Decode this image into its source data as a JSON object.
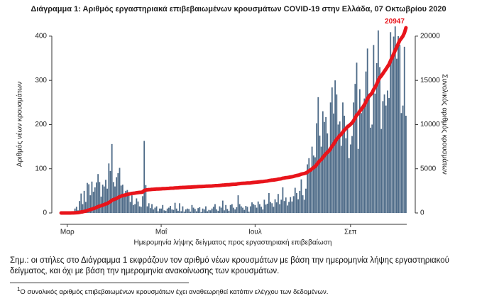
{
  "chart_data": {
    "type": "bar",
    "title": "Διάγραμμα 1: Αριθμός εργαστηριακά επιβεβαιωμένων κρουσμάτων COVID-19 στην Ελλάδα, 07 Οκτωβρίου 2020",
    "y_label": "Αριθμός νέων κρουσμάτων",
    "y2_label": "Συνολικός αριθμός κρουσμάτων",
    "x_label": "Ημερομηνία λήψης δείγματος προς εργαστηριακή επιβεβαίωση",
    "categories": [
      null,
      null,
      null,
      null,
      "Μαρ",
      null,
      null,
      null,
      null,
      null,
      null,
      null,
      null,
      null,
      null,
      null,
      null,
      null,
      null,
      null,
      null,
      null,
      null,
      null,
      null,
      null,
      null,
      null,
      null,
      null,
      null,
      null,
      null,
      null,
      null,
      null,
      null,
      null,
      null,
      null,
      null,
      null,
      null,
      null,
      null,
      null,
      null,
      null,
      null,
      null,
      null,
      null,
      null,
      null,
      null,
      null,
      null,
      null,
      null,
      null,
      null,
      null,
      null,
      null,
      null,
      "Μαΐ",
      null,
      null,
      null,
      null,
      null,
      null,
      null,
      null,
      null,
      null,
      null,
      null,
      null,
      null,
      null,
      null,
      null,
      null,
      null,
      null,
      null,
      null,
      null,
      null,
      null,
      null,
      null,
      null,
      null,
      null,
      null,
      null,
      null,
      null,
      null,
      null,
      null,
      null,
      null,
      null,
      null,
      null,
      null,
      null,
      null,
      null,
      null,
      null,
      null,
      null,
      null,
      null,
      null,
      null,
      null,
      null,
      null,
      null,
      null,
      null,
      "Ιουλ",
      null,
      null,
      null,
      null,
      null,
      null,
      null,
      null,
      null,
      null,
      null,
      null,
      null,
      null,
      null,
      null,
      null,
      null,
      null,
      null,
      null,
      null,
      null,
      null,
      null,
      null,
      null,
      null,
      null,
      null,
      null,
      null,
      null,
      null,
      null,
      null,
      null,
      null,
      null,
      null,
      null,
      null,
      null,
      null,
      null,
      null,
      null,
      null,
      null,
      null,
      null,
      null,
      null,
      null,
      null,
      null,
      null,
      null,
      null,
      null,
      null,
      "Σεπ",
      null,
      null,
      null,
      null,
      null,
      null,
      null,
      null,
      null,
      null,
      null,
      null,
      null,
      null,
      null,
      null,
      null,
      null,
      null,
      null,
      null,
      null,
      null,
      null,
      null,
      null,
      null,
      null,
      null,
      null,
      null,
      null,
      null,
      null,
      null,
      null
    ],
    "series": [
      {
        "color": "#4e6b88",
        "values": [
          0,
          0,
          1,
          0,
          0,
          2,
          0,
          3,
          3,
          10,
          14,
          6,
          27,
          44,
          20,
          50,
          25,
          68,
          65,
          40,
          71,
          48,
          58,
          69,
          88,
          70,
          37,
          64,
          60,
          75,
          55,
          112,
          95,
          156,
          70,
          60,
          81,
          90,
          102,
          62,
          64,
          36,
          50,
          52,
          45,
          25,
          40,
          18,
          20,
          33,
          26,
          15,
          14,
          38,
          163,
          63,
          15,
          22,
          11,
          20,
          8,
          12,
          15,
          4,
          10,
          10,
          18,
          6,
          5,
          10,
          12,
          16,
          8,
          7,
          23,
          10,
          5,
          22,
          4,
          15,
          3,
          8,
          10,
          9,
          3,
          18,
          12,
          9,
          4,
          11,
          13,
          2,
          10,
          8,
          15,
          4,
          7,
          6,
          10,
          14,
          20,
          8,
          5,
          15,
          12,
          28,
          6,
          18,
          9,
          5,
          18,
          20,
          12,
          8,
          13,
          40,
          20,
          15,
          12,
          7,
          16,
          14,
          3,
          15,
          24,
          20,
          18,
          12,
          26,
          20,
          14,
          8,
          30,
          19,
          21,
          45,
          25,
          22,
          14,
          31,
          24,
          43,
          20,
          30,
          58,
          27,
          35,
          17,
          25,
          36,
          26,
          38,
          57,
          45,
          31,
          50,
          76,
          40,
          30,
          55,
          110,
          124,
          98,
          150,
          130,
          126,
          203,
          262,
          175,
          150,
          230,
          206,
          217,
          180,
          140,
          250,
          284,
          225,
          300,
          268,
          200,
          207,
          152,
          250,
          220,
          169,
          200,
          124,
          155,
          174,
          250,
          292,
          340,
          145,
          280,
          226,
          240,
          259,
          320,
          372,
          270,
          193,
          200,
          380,
          270,
          339,
          413,
          330,
          190,
          253,
          268,
          243,
          277,
          260,
          409,
          359,
          399,
          422,
          349,
          400,
          380,
          226,
          243,
          376,
          220
        ]
      },
      {
        "type": "line",
        "axis": "y2",
        "color": "#e8141b",
        "values": [
          0,
          0,
          1,
          1,
          1,
          3,
          3,
          6,
          9,
          19,
          33,
          39,
          66,
          110,
          130,
          180,
          205,
          273,
          338,
          378,
          449,
          497,
          555,
          624,
          712,
          782,
          819,
          883,
          943,
          1018,
          1073,
          1185,
          1280,
          1436,
          1506,
          1566,
          1647,
          1737,
          1839,
          1901,
          1965,
          2001,
          2051,
          2103,
          2148,
          2173,
          2213,
          2231,
          2251,
          2284,
          2310,
          2325,
          2339,
          2377,
          2540,
          2603,
          2618,
          2640,
          2651,
          2671,
          2679,
          2691,
          2706,
          2710,
          2720,
          2730,
          2748,
          2754,
          2759,
          2769,
          2781,
          2797,
          2805,
          2812,
          2835,
          2845,
          2850,
          2872,
          2876,
          2891,
          2894,
          2902,
          2912,
          2921,
          2924,
          2942,
          2954,
          2963,
          2967,
          2978,
          2991,
          2993,
          3003,
          3011,
          3026,
          3030,
          3037,
          3043,
          3053,
          3067,
          3087,
          3095,
          3100,
          3115,
          3127,
          3155,
          3161,
          3179,
          3188,
          3193,
          3211,
          3231,
          3243,
          3251,
          3264,
          3304,
          3324,
          3339,
          3351,
          3358,
          3374,
          3388,
          3391,
          3406,
          3430,
          3450,
          3468,
          3480,
          3506,
          3526,
          3540,
          3548,
          3578,
          3597,
          3618,
          3663,
          3688,
          3710,
          3724,
          3755,
          3779,
          3822,
          3842,
          3872,
          3930,
          3957,
          3992,
          4009,
          4034,
          4070,
          4096,
          4134,
          4191,
          4236,
          4267,
          4317,
          4393,
          4433,
          4463,
          4518,
          4628,
          4752,
          4850,
          5000,
          5130,
          5256,
          5459,
          5721,
          5896,
          6046,
          6276,
          6482,
          6699,
          6879,
          7019,
          7269,
          7553,
          7778,
          8078,
          8346,
          8546,
          8753,
          8905,
          9155,
          9375,
          9544,
          9744,
          9868,
          10023,
          10197,
          10447,
          10739,
          11079,
          11224,
          11504,
          11730,
          11970,
          12229,
          12549,
          12921,
          13191,
          13384,
          13584,
          13964,
          14234,
          14573,
          14986,
          15316,
          15506,
          15759,
          16027,
          16270,
          16547,
          16807,
          17216,
          17575,
          17974,
          18396,
          18745,
          19145,
          19525,
          19751,
          19994,
          20370,
          20947
        ]
      }
    ],
    "ylim": [
      0,
      440
    ],
    "yticks": [
      0,
      100,
      200,
      300,
      400
    ],
    "y2lim": [
      0,
      22000
    ],
    "y2ticks": [
      0,
      5000,
      10000,
      15000,
      20000
    ]
  },
  "note": "Σημ.: οι στήλες στο Διάγραμμα 1 εκφράζουν τον αριθμό νέων κρουσμάτων με βάση την ημερομηνία λήψης εργαστηριακού δείγματος, και όχι με βάση την ημερομηνία ανακοίνωσης των κρουσμάτων.",
  "footnote": {
    "marker": "1",
    "text": "Ο συνολικός αριθμός επιβεβαιωμένων κρουσμάτων έχει αναθεωρηθεί κατόπιν ελέγχου των δεδομένων."
  }
}
